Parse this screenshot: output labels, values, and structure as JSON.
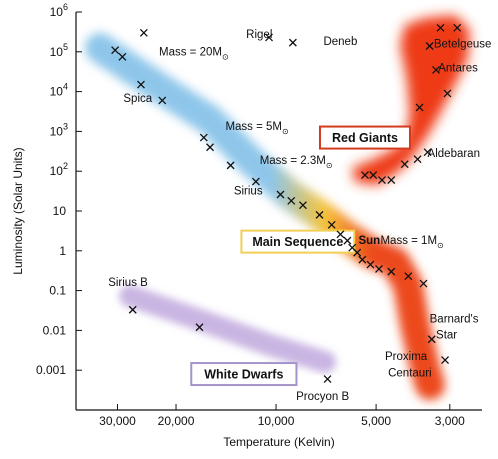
{
  "chart_data": {
    "type": "scatter",
    "xlabel": "Temperature (Kelvin)",
    "ylabel": "Luminosity (Solar Units)",
    "x_scale": "log, reversed",
    "y_scale": "log",
    "xlim": [
      40000,
      2400
    ],
    "ylim": [
      0.0001,
      1000000
    ],
    "x_ticks": [
      {
        "value": 30000,
        "label": "30,000"
      },
      {
        "value": 20000,
        "label": "20,000"
      },
      {
        "value": 10000,
        "label": "10,000"
      },
      {
        "value": 5000,
        "label": "5,000"
      },
      {
        "value": 3000,
        "label": "3,000"
      }
    ],
    "y_ticks": [
      {
        "value": 1000000,
        "base": "10",
        "exp": "6"
      },
      {
        "value": 100000,
        "base": "10",
        "exp": "5"
      },
      {
        "value": 10000,
        "base": "10",
        "exp": "4"
      },
      {
        "value": 1000,
        "base": "10",
        "exp": "3"
      },
      {
        "value": 100,
        "base": "10",
        "exp": "2"
      },
      {
        "value": 10,
        "base": "10",
        "exp": ""
      },
      {
        "value": 1,
        "base": "1",
        "exp": ""
      },
      {
        "value": 0.1,
        "base": "0.1",
        "exp": ""
      },
      {
        "value": 0.01,
        "base": "0.01",
        "exp": ""
      },
      {
        "value": 0.001,
        "base": "0.001",
        "exp": ""
      }
    ],
    "region_colors": {
      "main_sequence_blue": "#8ec6ea",
      "main_sequence_yellow": "#f6c43a",
      "main_sequence_red": "#ec4a1a",
      "red_giants": "#ee3a14",
      "white_dwarfs": "#c9b5e2",
      "red_giants_box": "#d33a1e",
      "main_sequence_box": "#f3cf55",
      "white_dwarfs_box": "#a494c9"
    },
    "region_labels": [
      {
        "text": "Red Giants",
        "x": 5400,
        "y": 700
      },
      {
        "text": "Main Sequence",
        "x": 8600,
        "y": 1.7
      },
      {
        "text": "White Dwarfs",
        "x": 12500,
        "y": 0.0008
      }
    ],
    "series": [
      {
        "points": [
          {
            "x": 30500,
            "y": 110000
          },
          {
            "x": 29000,
            "y": 75000
          },
          {
            "x": 25000,
            "y": 300000
          },
          {
            "x": 25500,
            "y": 15000
          },
          {
            "x": 22000,
            "y": 6000
          },
          {
            "x": 16500,
            "y": 700
          },
          {
            "x": 15800,
            "y": 400
          },
          {
            "x": 13700,
            "y": 140
          },
          {
            "x": 11500,
            "y": 55
          },
          {
            "x": 9700,
            "y": 26
          },
          {
            "x": 9000,
            "y": 18
          },
          {
            "x": 8300,
            "y": 14
          },
          {
            "x": 7400,
            "y": 8
          },
          {
            "x": 6800,
            "y": 4.5
          },
          {
            "x": 6400,
            "y": 2.6
          },
          {
            "x": 6100,
            "y": 1.8
          },
          {
            "x": 5900,
            "y": 1.2
          },
          {
            "x": 5700,
            "y": 0.9
          },
          {
            "x": 5500,
            "y": 0.6
          },
          {
            "x": 5200,
            "y": 0.45
          },
          {
            "x": 4900,
            "y": 0.35
          },
          {
            "x": 4500,
            "y": 0.3
          },
          {
            "x": 4000,
            "y": 0.23
          },
          {
            "x": 3600,
            "y": 0.15
          },
          {
            "x": 3400,
            "y": 0.006
          },
          {
            "x": 3100,
            "y": 0.0018
          },
          {
            "x": 27000,
            "y": 0.033
          },
          {
            "x": 17000,
            "y": 0.012
          },
          {
            "x": 7000,
            "y": 0.0006
          },
          {
            "x": 10500,
            "y": 230000
          },
          {
            "x": 8900,
            "y": 170000
          },
          {
            "x": 3200,
            "y": 400000
          },
          {
            "x": 2850,
            "y": 400000
          },
          {
            "x": 3450,
            "y": 140000
          },
          {
            "x": 3300,
            "y": 35000
          },
          {
            "x": 3050,
            "y": 9000
          },
          {
            "x": 3700,
            "y": 4000
          },
          {
            "x": 5400,
            "y": 80
          },
          {
            "x": 5100,
            "y": 80
          },
          {
            "x": 4800,
            "y": 60
          },
          {
            "x": 4500,
            "y": 60
          },
          {
            "x": 4100,
            "y": 150
          },
          {
            "x": 3750,
            "y": 200
          },
          {
            "x": 3500,
            "y": 300
          }
        ]
      }
    ],
    "annotations": [
      {
        "text": "Rigel",
        "x": 12300,
        "y": 220000
      },
      {
        "text": "Deneb",
        "x": 7200,
        "y": 150000
      },
      {
        "text": "Mass = 20M",
        "x": 22500,
        "y": 80000,
        "sub": "⊙"
      },
      {
        "text": "Spica",
        "x": 28800,
        "y": 5500
      },
      {
        "text": "Betelgeuse",
        "x": 3350,
        "y": 130000
      },
      {
        "text": "Antares",
        "x": 3250,
        "y": 32000
      },
      {
        "text": "Mass = 5M",
        "x": 14200,
        "y": 1100,
        "sub": "⊙"
      },
      {
        "text": "Aldebaran",
        "x": 3500,
        "y": 230
      },
      {
        "text": "Mass = 2.3M",
        "x": 11200,
        "y": 150,
        "sub": "⊙"
      },
      {
        "text": "Sirius",
        "x": 13400,
        "y": 26
      },
      {
        "text": "Sun",
        "x": 5650,
        "y": 1.5
      },
      {
        "text": "Mass = 1M",
        "x": 4850,
        "y": 1.5,
        "sub": "⊙"
      },
      {
        "text": "Sirius B",
        "x": 32000,
        "y": 0.13
      },
      {
        "text": "Barnard's",
        "x": 3450,
        "y": 0.016
      },
      {
        "text": "Star",
        "x": 3300,
        "y": 0.0062
      },
      {
        "text": "Proxima",
        "x": 4700,
        "y": 0.0018
      },
      {
        "text": "Centauri",
        "x": 4600,
        "y": 0.0007
      },
      {
        "text": "Procyon B",
        "x": 8700,
        "y": 0.00018
      }
    ]
  }
}
